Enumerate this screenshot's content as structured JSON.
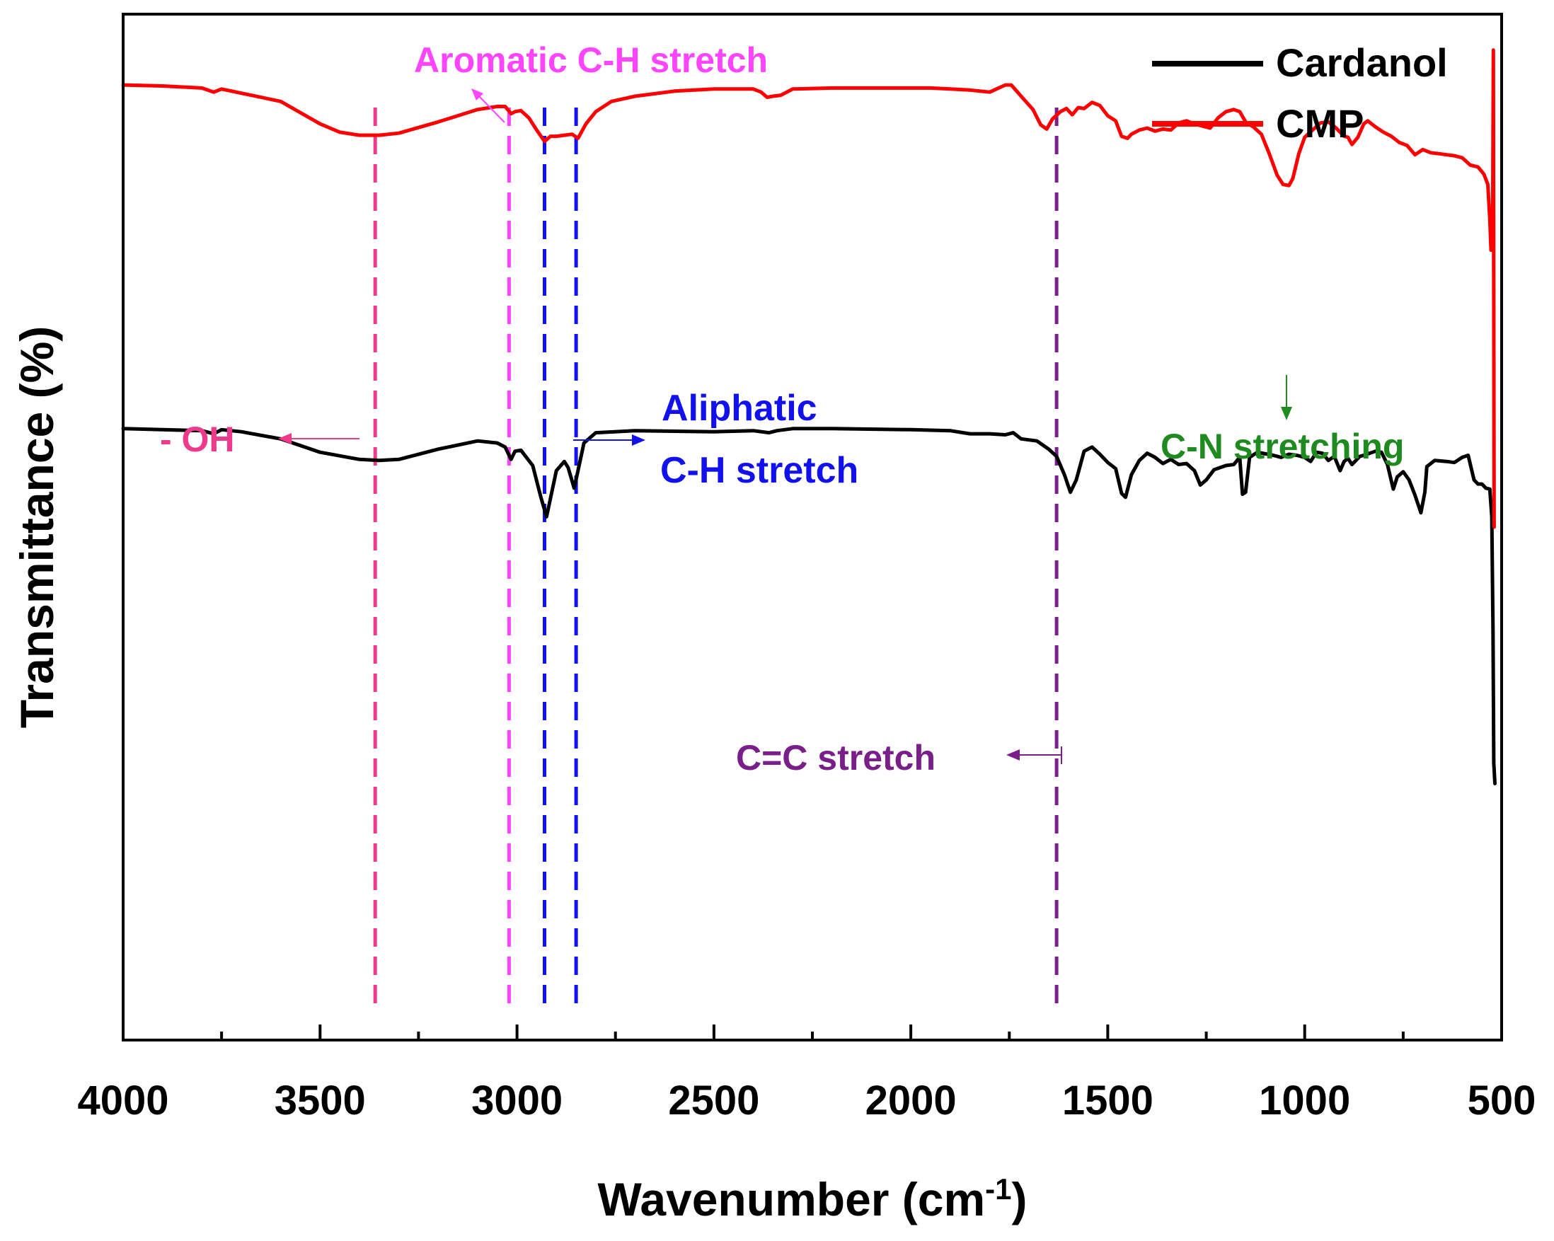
{
  "chart_data": {
    "type": "line",
    "title": "",
    "xlabel": "Wavenumber (cm",
    "xlabel_superscript": "-1",
    "xlabel_close": ")",
    "ylabel": "Transmittance (%)",
    "xlim": [
      4000,
      500
    ],
    "x_reversed": true,
    "ylim": [
      0,
      100
    ],
    "y_ticks_shown": false,
    "xticks": [
      {
        "value": 4000,
        "label": "4000"
      },
      {
        "value": 3500,
        "label": "3500"
      },
      {
        "value": 3000,
        "label": "3000"
      },
      {
        "value": 2500,
        "label": "2500"
      },
      {
        "value": 2000,
        "label": "2000"
      },
      {
        "value": 1500,
        "label": "1500"
      },
      {
        "value": 1000,
        "label": "1000"
      },
      {
        "value": 500,
        "label": "500"
      }
    ],
    "xticks_minor": [
      3750,
      3250,
      2750,
      2250,
      1750,
      1250,
      750
    ],
    "legend": {
      "position": "top-right"
    },
    "series": [
      {
        "name": "Cardanol",
        "color": "#000000",
        "points": [
          [
            4000,
            59.6
          ],
          [
            3900,
            59.5
          ],
          [
            3800,
            59.4
          ],
          [
            3770,
            59.1
          ],
          [
            3750,
            59.5
          ],
          [
            3700,
            59.3
          ],
          [
            3600,
            58.6
          ],
          [
            3500,
            57.3
          ],
          [
            3400,
            56.6
          ],
          [
            3350,
            56.5
          ],
          [
            3300,
            56.6
          ],
          [
            3200,
            57.6
          ],
          [
            3100,
            58.4
          ],
          [
            3050,
            58.2
          ],
          [
            3030,
            57.8
          ],
          [
            3015,
            56.6
          ],
          [
            3005,
            57.4
          ],
          [
            2990,
            57.5
          ],
          [
            2960,
            56.0
          ],
          [
            2940,
            53.0
          ],
          [
            2925,
            51.0
          ],
          [
            2915,
            52.8
          ],
          [
            2900,
            55.5
          ],
          [
            2880,
            56.4
          ],
          [
            2870,
            55.8
          ],
          [
            2855,
            53.8
          ],
          [
            2845,
            55.5
          ],
          [
            2830,
            58.2
          ],
          [
            2800,
            59.2
          ],
          [
            2700,
            59.4
          ],
          [
            2500,
            59.3
          ],
          [
            2400,
            59.4
          ],
          [
            2360,
            59.2
          ],
          [
            2340,
            59.4
          ],
          [
            2300,
            59.6
          ],
          [
            2200,
            59.6
          ],
          [
            2000,
            59.5
          ],
          [
            1900,
            59.4
          ],
          [
            1850,
            59.1
          ],
          [
            1800,
            59.1
          ],
          [
            1760,
            59.0
          ],
          [
            1740,
            59.2
          ],
          [
            1720,
            58.6
          ],
          [
            1680,
            58.4
          ],
          [
            1650,
            57.6
          ],
          [
            1630,
            56.9
          ],
          [
            1610,
            55.1
          ],
          [
            1595,
            53.4
          ],
          [
            1580,
            54.6
          ],
          [
            1560,
            57.4
          ],
          [
            1540,
            57.8
          ],
          [
            1520,
            57.1
          ],
          [
            1500,
            56.3
          ],
          [
            1480,
            55.7
          ],
          [
            1465,
            53.3
          ],
          [
            1455,
            52.9
          ],
          [
            1440,
            55.1
          ],
          [
            1420,
            56.5
          ],
          [
            1400,
            57.2
          ],
          [
            1380,
            56.8
          ],
          [
            1360,
            56.2
          ],
          [
            1340,
            56.6
          ],
          [
            1320,
            56.1
          ],
          [
            1300,
            56.2
          ],
          [
            1280,
            55.5
          ],
          [
            1265,
            54.1
          ],
          [
            1250,
            54.6
          ],
          [
            1230,
            55.6
          ],
          [
            1200,
            56.0
          ],
          [
            1180,
            56.1
          ],
          [
            1165,
            56.8
          ],
          [
            1158,
            53.2
          ],
          [
            1150,
            53.4
          ],
          [
            1140,
            56.8
          ],
          [
            1120,
            57.3
          ],
          [
            1080,
            57.0
          ],
          [
            1060,
            56.8
          ],
          [
            1040,
            57.1
          ],
          [
            1020,
            57.0
          ],
          [
            1000,
            56.8
          ],
          [
            985,
            56.4
          ],
          [
            970,
            57.3
          ],
          [
            955,
            57.2
          ],
          [
            940,
            56.5
          ],
          [
            925,
            56.9
          ],
          [
            910,
            55.5
          ],
          [
            900,
            56.4
          ],
          [
            890,
            56.7
          ],
          [
            880,
            56.1
          ],
          [
            860,
            56.9
          ],
          [
            850,
            57.0
          ],
          [
            820,
            57.4
          ],
          [
            805,
            57.3
          ],
          [
            790,
            56.1
          ],
          [
            775,
            53.7
          ],
          [
            765,
            54.9
          ],
          [
            750,
            55.4
          ],
          [
            735,
            54.6
          ],
          [
            720,
            53.1
          ],
          [
            705,
            51.4
          ],
          [
            695,
            53.4
          ],
          [
            690,
            55.9
          ],
          [
            670,
            56.5
          ],
          [
            640,
            56.4
          ],
          [
            620,
            56.3
          ],
          [
            600,
            56.8
          ],
          [
            585,
            57.0
          ],
          [
            570,
            54.6
          ],
          [
            560,
            54.2
          ],
          [
            550,
            54.2
          ],
          [
            540,
            53.8
          ],
          [
            530,
            53.7
          ],
          [
            525,
            51.0
          ],
          [
            522,
            40.0
          ],
          [
            520,
            27.0
          ],
          [
            517,
            25.0
          ]
        ]
      },
      {
        "name": "CMP",
        "color": "#ff0000",
        "points": [
          [
            4000,
            93.1
          ],
          [
            3900,
            93.0
          ],
          [
            3800,
            92.8
          ],
          [
            3770,
            92.4
          ],
          [
            3750,
            92.7
          ],
          [
            3700,
            92.3
          ],
          [
            3600,
            91.5
          ],
          [
            3500,
            89.3
          ],
          [
            3450,
            88.5
          ],
          [
            3400,
            88.2
          ],
          [
            3350,
            88.2
          ],
          [
            3300,
            88.4
          ],
          [
            3200,
            89.5
          ],
          [
            3100,
            90.7
          ],
          [
            3050,
            91.0
          ],
          [
            3030,
            91.0
          ],
          [
            3015,
            90.3
          ],
          [
            3005,
            90.5
          ],
          [
            2990,
            90.6
          ],
          [
            2970,
            89.9
          ],
          [
            2950,
            88.7
          ],
          [
            2930,
            87.6
          ],
          [
            2915,
            88.1
          ],
          [
            2900,
            88.1
          ],
          [
            2880,
            88.2
          ],
          [
            2860,
            88.3
          ],
          [
            2845,
            87.9
          ],
          [
            2825,
            89.3
          ],
          [
            2800,
            90.5
          ],
          [
            2760,
            91.5
          ],
          [
            2700,
            92.0
          ],
          [
            2600,
            92.5
          ],
          [
            2500,
            92.7
          ],
          [
            2400,
            92.7
          ],
          [
            2380,
            92.4
          ],
          [
            2365,
            91.9
          ],
          [
            2350,
            92.0
          ],
          [
            2330,
            92.1
          ],
          [
            2300,
            92.7
          ],
          [
            2200,
            92.8
          ],
          [
            2000,
            92.8
          ],
          [
            1950,
            92.8
          ],
          [
            1900,
            92.7
          ],
          [
            1850,
            92.6
          ],
          [
            1800,
            92.4
          ],
          [
            1760,
            93.1
          ],
          [
            1745,
            93.1
          ],
          [
            1720,
            92.0
          ],
          [
            1690,
            90.7
          ],
          [
            1670,
            89.2
          ],
          [
            1655,
            88.8
          ],
          [
            1640,
            89.8
          ],
          [
            1620,
            90.5
          ],
          [
            1605,
            90.8
          ],
          [
            1590,
            90.2
          ],
          [
            1575,
            90.9
          ],
          [
            1560,
            90.8
          ],
          [
            1540,
            91.4
          ],
          [
            1520,
            91.1
          ],
          [
            1500,
            90.1
          ],
          [
            1480,
            89.6
          ],
          [
            1465,
            88.1
          ],
          [
            1450,
            87.9
          ],
          [
            1440,
            88.3
          ],
          [
            1420,
            88.7
          ],
          [
            1400,
            88.9
          ],
          [
            1380,
            88.6
          ],
          [
            1360,
            88.8
          ],
          [
            1340,
            88.7
          ],
          [
            1320,
            89.4
          ],
          [
            1300,
            89.6
          ],
          [
            1280,
            89.3
          ],
          [
            1260,
            89.1
          ],
          [
            1240,
            88.9
          ],
          [
            1220,
            89.9
          ],
          [
            1200,
            90.5
          ],
          [
            1180,
            90.7
          ],
          [
            1165,
            90.5
          ],
          [
            1150,
            89.5
          ],
          [
            1130,
            89.0
          ],
          [
            1110,
            88.3
          ],
          [
            1090,
            86.4
          ],
          [
            1070,
            84.3
          ],
          [
            1055,
            83.4
          ],
          [
            1040,
            83.3
          ],
          [
            1030,
            84.0
          ],
          [
            1015,
            86.4
          ],
          [
            1000,
            88.0
          ],
          [
            980,
            88.7
          ],
          [
            960,
            89.4
          ],
          [
            940,
            89.5
          ],
          [
            920,
            88.9
          ],
          [
            900,
            88.1
          ],
          [
            890,
            88.0
          ],
          [
            880,
            87.3
          ],
          [
            865,
            88.0
          ],
          [
            850,
            89.3
          ],
          [
            840,
            89.6
          ],
          [
            820,
            89.0
          ],
          [
            800,
            88.5
          ],
          [
            780,
            88.1
          ],
          [
            760,
            87.5
          ],
          [
            740,
            87.2
          ],
          [
            720,
            86.3
          ],
          [
            700,
            86.8
          ],
          [
            680,
            86.5
          ],
          [
            660,
            86.4
          ],
          [
            640,
            86.3
          ],
          [
            620,
            86.2
          ],
          [
            600,
            86.0
          ],
          [
            580,
            85.3
          ],
          [
            560,
            85.1
          ],
          [
            545,
            84.4
          ],
          [
            535,
            83.4
          ],
          [
            530,
            80.0
          ],
          [
            527,
            77.0
          ],
          [
            523,
            77.5
          ],
          [
            521,
            96.5
          ],
          [
            519,
            50.0
          ]
        ]
      }
    ],
    "reference_lines": [
      {
        "x": 3360,
        "color": "#ee3a8c"
      },
      {
        "x": 3020,
        "color": "#ff44ff"
      },
      {
        "x": 2930,
        "color": "#1111ee"
      },
      {
        "x": 2850,
        "color": "#1111ee"
      },
      {
        "x": 1630,
        "color": "#7a1f8a"
      }
    ],
    "annotations": [
      {
        "id": "aromatic",
        "lines": [
          "Aromatic C-H stretch"
        ],
        "color": "#ff44ff"
      },
      {
        "id": "oh",
        "lines": [
          "- OH"
        ],
        "color": "#ee3a8c"
      },
      {
        "id": "aliphatic",
        "lines": [
          "Aliphatic",
          "C-H stretch"
        ],
        "color": "#1111ee"
      },
      {
        "id": "cc",
        "lines": [
          "C=C stretch"
        ],
        "color": "#7a1f8a"
      },
      {
        "id": "cn",
        "lines": [
          "C-N stretching"
        ],
        "color": "#1f8a1f"
      }
    ]
  }
}
